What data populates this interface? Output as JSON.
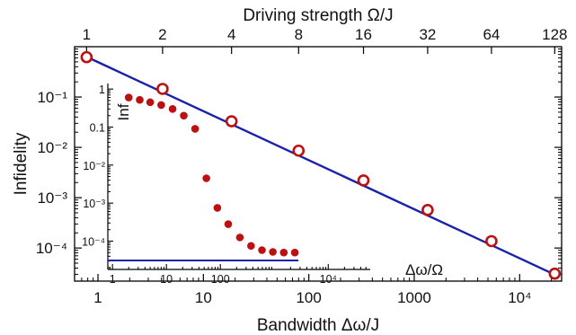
{
  "chart_data": {
    "type": "scatter",
    "colors": {
      "marker": "#bb1111",
      "fit_line": "#1a22aa",
      "axes": "#000000"
    },
    "main": {
      "xlabel": "Bandwidth  Δω/J",
      "ylabel": "Infidelity",
      "x_scale": "log",
      "y_scale": "log",
      "xlim": [
        0.6,
        25000
      ],
      "ylim": [
        2.2e-05,
        1.0
      ],
      "x_ticks": [
        {
          "value": 1,
          "label": "1"
        },
        {
          "value": 10,
          "label": "10"
        },
        {
          "value": 100,
          "label": "100"
        },
        {
          "value": 1000,
          "label": "1000"
        },
        {
          "value": 10000,
          "label": "10⁴"
        }
      ],
      "y_ticks": [
        {
          "value": 0.1,
          "label": "10⁻¹"
        },
        {
          "value": 0.01,
          "label": "10⁻²"
        },
        {
          "value": 0.001,
          "label": "10⁻³"
        },
        {
          "value": 0.0001,
          "label": "10⁻⁴"
        }
      ],
      "top_axis": {
        "label": "Driving strength  Ω/J",
        "ticks": [
          {
            "x": 0.78,
            "label": "1"
          },
          {
            "x": 4.1,
            "label": "2"
          },
          {
            "x": 18.5,
            "label": "4"
          },
          {
            "x": 80,
            "label": "8"
          },
          {
            "x": 330,
            "label": "16"
          },
          {
            "x": 1340,
            "label": "32"
          },
          {
            "x": 5400,
            "label": "64"
          },
          {
            "x": 21500,
            "label": "128"
          }
        ]
      },
      "series": [
        {
          "marker": "open-circle",
          "points": [
            {
              "x": 0.78,
              "y": 0.62
            },
            {
              "x": 4.1,
              "y": 0.145
            },
            {
              "x": 18.5,
              "y": 0.033
            },
            {
              "x": 80,
              "y": 0.0086
            },
            {
              "x": 330,
              "y": 0.0022
            },
            {
              "x": 1340,
              "y": 0.00057
            },
            {
              "x": 5400,
              "y": 0.000137
            },
            {
              "x": 21500,
              "y": 3.1e-05
            }
          ]
        },
        {
          "marker": "line",
          "points": [
            {
              "x": 0.72,
              "y": 0.68
            },
            {
              "x": 22000,
              "y": 2.9e-05
            }
          ]
        }
      ]
    },
    "inset": {
      "xlabel": "Δω/Ω",
      "ylabel": "Inf",
      "x_scale": "log",
      "y_scale": "log",
      "xlim": [
        0.82,
        60000
      ],
      "ylim": [
        1.8e-05,
        1.4
      ],
      "x_ticks": [
        {
          "value": 1,
          "label": "1"
        },
        {
          "value": 10,
          "label": "10"
        },
        {
          "value": 100,
          "label": "100"
        },
        {
          "value": 10000,
          "label": "10⁴"
        }
      ],
      "y_ticks": [
        {
          "value": 1,
          "label": "1"
        },
        {
          "value": 0.1,
          "label": "0.1"
        },
        {
          "value": 0.01,
          "label": "10⁻²"
        },
        {
          "value": 0.001,
          "label": "10⁻³"
        },
        {
          "value": 0.0001,
          "label": "10⁻⁴"
        }
      ],
      "series": [
        {
          "marker": "filled-circle",
          "points": [
            {
              "x": 2,
              "y": 0.6
            },
            {
              "x": 3.2,
              "y": 0.52
            },
            {
              "x": 5,
              "y": 0.45
            },
            {
              "x": 8,
              "y": 0.38
            },
            {
              "x": 13,
              "y": 0.3
            },
            {
              "x": 21,
              "y": 0.2
            },
            {
              "x": 34,
              "y": 0.09
            },
            {
              "x": 55,
              "y": 0.0045
            },
            {
              "x": 88,
              "y": 0.00075
            },
            {
              "x": 140,
              "y": 0.00028
            },
            {
              "x": 230,
              "y": 0.000125
            },
            {
              "x": 370,
              "y": 7.5e-05
            },
            {
              "x": 590,
              "y": 5.8e-05
            },
            {
              "x": 940,
              "y": 5.2e-05
            },
            {
              "x": 1500,
              "y": 5e-05
            },
            {
              "x": 2400,
              "y": 5e-05
            }
          ]
        },
        {
          "marker": "line",
          "points": [
            {
              "x": 0.82,
              "y": 3.1e-05
            },
            {
              "x": 2800,
              "y": 3.1e-05
            }
          ]
        }
      ]
    }
  }
}
